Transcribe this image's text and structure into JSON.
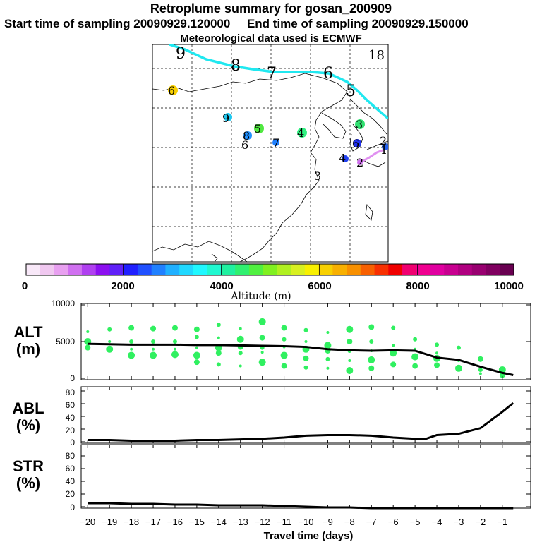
{
  "header": {
    "title": "Retroplume summary for gosan_200909",
    "sampling_line": "Start time of sampling 20090929.120000     End time of sampling 20090929.150000",
    "met_line": "Meteorological data used is ECMWF"
  },
  "map": {
    "corner_label": "18",
    "trajectory_labels": [
      "9",
      "8",
      "7",
      "6",
      "5",
      "6",
      "9",
      "5",
      "8",
      "6",
      "7",
      "4",
      "3",
      "6",
      "4",
      "2",
      "3",
      "2",
      "1"
    ]
  },
  "colorbar": {
    "ticks": [
      "0",
      "2000",
      "4000",
      "6000",
      "8000",
      "10000"
    ],
    "label": "Altitude (m)",
    "colors": [
      "#f8e8f8",
      "#f0c8f0",
      "#e8a0f0",
      "#d070f0",
      "#b040f0",
      "#8c10f0",
      "#6020f8",
      "#2020ff",
      "#2050ff",
      "#2080ff",
      "#20b0ff",
      "#20d8ff",
      "#20f8ff",
      "#20f8d0",
      "#20f0a0",
      "#30f070",
      "#50f040",
      "#80f020",
      "#b0f020",
      "#d8f020",
      "#f8f000",
      "#f8d000",
      "#f8b000",
      "#f89000",
      "#f86000",
      "#f83000",
      "#f00000",
      "#f00070",
      "#f00090",
      "#e000a0",
      "#c80090",
      "#b00080",
      "#980070",
      "#800060",
      "#680050"
    ]
  },
  "panels": {
    "alt": {
      "label1": "ALT",
      "label2": "(m)",
      "ticks": [
        "10000",
        "5000",
        "0"
      ]
    },
    "abl": {
      "label1": "ABL",
      "label2": "(%)",
      "ticks": [
        "80",
        "60",
        "40",
        "20",
        "0"
      ]
    },
    "str": {
      "label1": "STR",
      "label2": "(%)",
      "ticks": [
        "80",
        "60",
        "40",
        "20",
        "0"
      ]
    }
  },
  "xaxis": {
    "label": "Travel time (days)",
    "ticks": [
      "−20",
      "−19",
      "−18",
      "−17",
      "−16",
      "−15",
      "−14",
      "−13",
      "−12",
      "−11",
      "−10",
      "−9",
      "−8",
      "−7",
      "−6",
      "−5",
      "−4",
      "−3",
      "−2",
      "−1"
    ]
  },
  "chart_data": [
    {
      "type": "line",
      "title": "ALT (m)",
      "xlabel": "Travel time (days)",
      "ylabel": "ALT (m)",
      "xlim": [
        -20.3,
        0.3
      ],
      "ylim": [
        0,
        10000
      ],
      "x": [
        -20,
        -19,
        -18,
        -17,
        -16,
        -15,
        -14,
        -13,
        -12,
        -11,
        -10,
        -9,
        -8,
        -7,
        -6,
        -5,
        -4,
        -3,
        -2,
        -1,
        -0.5
      ],
      "series": [
        {
          "name": "mean altitude",
          "values": [
            4700,
            4650,
            4600,
            4600,
            4600,
            4550,
            4550,
            4500,
            4450,
            4400,
            4300,
            4000,
            3850,
            3800,
            3850,
            3800,
            2900,
            2600,
            1700,
            900,
            600
          ]
        }
      ],
      "scatter_color": "#30f060",
      "scatter_points": [
        [
          -20,
          6300
        ],
        [
          -20,
          5000
        ],
        [
          -20,
          4200
        ],
        [
          -19,
          6600
        ],
        [
          -19,
          5000
        ],
        [
          -19,
          4000
        ],
        [
          -18,
          6800
        ],
        [
          -18,
          5000
        ],
        [
          -18,
          4000
        ],
        [
          -18,
          3200
        ],
        [
          -17,
          6700
        ],
        [
          -17,
          5000
        ],
        [
          -17,
          4000
        ],
        [
          -17,
          3200
        ],
        [
          -16,
          6800
        ],
        [
          -16,
          5000
        ],
        [
          -16,
          4000
        ],
        [
          -16,
          3300
        ],
        [
          -15,
          6600
        ],
        [
          -15,
          5600
        ],
        [
          -15,
          4200
        ],
        [
          -15,
          3200
        ],
        [
          -15,
          2300
        ],
        [
          -14,
          7200
        ],
        [
          -14,
          5500
        ],
        [
          -14,
          4200
        ],
        [
          -14,
          3500
        ],
        [
          -14,
          2000
        ],
        [
          -13,
          6700
        ],
        [
          -13,
          5300
        ],
        [
          -13,
          4300
        ],
        [
          -13,
          3500
        ],
        [
          -13,
          1800
        ],
        [
          -12,
          7600
        ],
        [
          -12,
          5500
        ],
        [
          -12,
          4200
        ],
        [
          -12,
          3600
        ],
        [
          -12,
          2300
        ],
        [
          -11,
          6800
        ],
        [
          -11,
          5300
        ],
        [
          -11,
          4300
        ],
        [
          -11,
          3200
        ],
        [
          -11,
          1800
        ],
        [
          -10,
          6500
        ],
        [
          -10,
          5000
        ],
        [
          -10,
          4000
        ],
        [
          -10,
          2800
        ],
        [
          -10,
          1600
        ],
        [
          -9,
          6200
        ],
        [
          -9,
          4500
        ],
        [
          -9,
          3800
        ],
        [
          -9,
          2700
        ],
        [
          -9,
          1500
        ],
        [
          -8,
          6600
        ],
        [
          -8,
          5000
        ],
        [
          -8,
          3800
        ],
        [
          -8,
          2500
        ],
        [
          -8,
          1200
        ],
        [
          -7,
          6900
        ],
        [
          -7,
          5000
        ],
        [
          -7,
          3800
        ],
        [
          -7,
          2600
        ],
        [
          -7,
          1500
        ],
        [
          -6,
          6800
        ],
        [
          -6,
          4500
        ],
        [
          -6,
          3500
        ],
        [
          -6,
          2000
        ],
        [
          -5,
          5300
        ],
        [
          -5,
          4000
        ],
        [
          -5,
          3000
        ],
        [
          -5,
          1800
        ],
        [
          -4,
          4600
        ],
        [
          -4,
          3500
        ],
        [
          -4,
          2800
        ],
        [
          -4,
          1900
        ],
        [
          -3,
          4200
        ],
        [
          -3,
          2500
        ],
        [
          -3,
          1500
        ],
        [
          -2,
          2700
        ],
        [
          -2,
          1300
        ],
        [
          -2,
          800
        ],
        [
          -1,
          1300
        ],
        [
          -1,
          600
        ]
      ]
    },
    {
      "type": "line",
      "title": "ABL (%)",
      "xlabel": "Travel time (days)",
      "ylabel": "ABL (%)",
      "xlim": [
        -20.3,
        0.3
      ],
      "ylim": [
        0,
        90
      ],
      "x": [
        -20,
        -19,
        -18,
        -17,
        -16,
        -15,
        -14,
        -13,
        -12,
        -11,
        -10,
        -9,
        -8,
        -7,
        -6,
        -5,
        -4.5,
        -4,
        -3,
        -2,
        -1,
        -0.5
      ],
      "series": [
        {
          "name": "ABL",
          "values": [
            5,
            5,
            4,
            4,
            4,
            5,
            5,
            6,
            7,
            9,
            12,
            13,
            13,
            12,
            9,
            7,
            7,
            13,
            15,
            24,
            50,
            64
          ]
        }
      ]
    },
    {
      "type": "line",
      "title": "STR (%)",
      "xlabel": "Travel time (days)",
      "ylabel": "STR (%)",
      "xlim": [
        -20.3,
        0.3
      ],
      "ylim": [
        0,
        90
      ],
      "x": [
        -20,
        -19,
        -18,
        -17,
        -16,
        -15,
        -14,
        -13,
        -12,
        -11,
        -10,
        -9,
        -8,
        -7,
        -6,
        -5,
        -4,
        -3,
        -2,
        -1,
        -0.5
      ],
      "series": [
        {
          "name": "STR",
          "values": [
            7,
            7,
            6,
            6,
            5,
            5,
            4,
            4,
            4,
            3,
            2,
            1,
            1,
            0,
            0,
            0,
            0,
            0,
            0,
            0,
            0
          ]
        }
      ]
    }
  ]
}
